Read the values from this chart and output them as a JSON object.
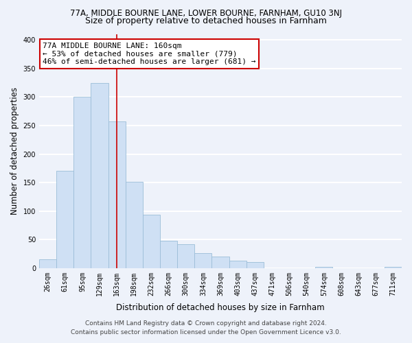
{
  "title_line1": "77A, MIDDLE BOURNE LANE, LOWER BOURNE, FARNHAM, GU10 3NJ",
  "title_line2": "Size of property relative to detached houses in Farnham",
  "xlabel": "Distribution of detached houses by size in Farnham",
  "ylabel": "Number of detached properties",
  "categories": [
    "26sqm",
    "61sqm",
    "95sqm",
    "129sqm",
    "163sqm",
    "198sqm",
    "232sqm",
    "266sqm",
    "300sqm",
    "334sqm",
    "369sqm",
    "403sqm",
    "437sqm",
    "471sqm",
    "506sqm",
    "540sqm",
    "574sqm",
    "608sqm",
    "643sqm",
    "677sqm",
    "711sqm"
  ],
  "values": [
    15,
    170,
    300,
    325,
    257,
    151,
    93,
    48,
    42,
    26,
    20,
    13,
    11,
    0,
    0,
    0,
    2,
    0,
    0,
    0,
    2
  ],
  "bar_color": "#cfe0f4",
  "bar_edge_color": "#9bbdd8",
  "vline_x_index": 4,
  "vline_color": "#cc0000",
  "annotation_line1": "77A MIDDLE BOURNE LANE: 160sqm",
  "annotation_line2": "← 53% of detached houses are smaller (779)",
  "annotation_line3": "46% of semi-detached houses are larger (681) →",
  "annotation_box_color": "#ffffff",
  "annotation_box_edge": "#cc0000",
  "ylim": [
    0,
    410
  ],
  "yticks": [
    0,
    50,
    100,
    150,
    200,
    250,
    300,
    350,
    400
  ],
  "footer_line1": "Contains HM Land Registry data © Crown copyright and database right 2024.",
  "footer_line2": "Contains public sector information licensed under the Open Government Licence v3.0.",
  "bg_color": "#eef2fa",
  "plot_bg_color": "#eef2fa",
  "grid_color": "#ffffff",
  "title1_fontsize": 8.5,
  "title2_fontsize": 9,
  "axis_label_fontsize": 8.5,
  "tick_fontsize": 7,
  "annotation_fontsize": 8,
  "footer_fontsize": 6.5
}
